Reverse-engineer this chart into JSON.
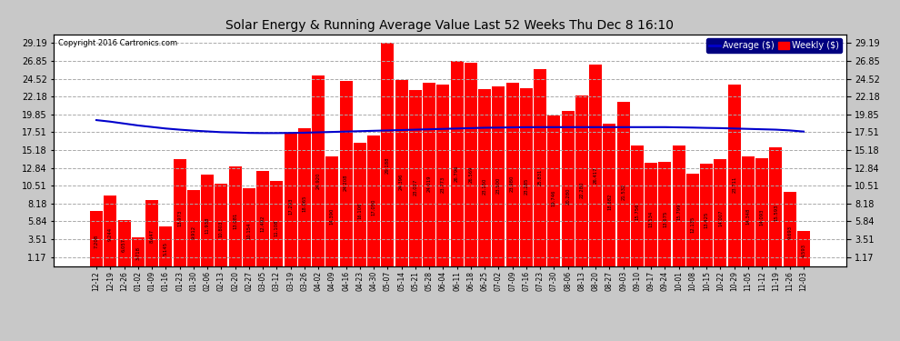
{
  "title": "Solar Energy & Running Average Value Last 52 Weeks Thu Dec 8 16:10",
  "copyright": "Copyright 2016 Cartronics.com",
  "bar_color": "#ff0000",
  "avg_line_color": "#0000cc",
  "background_color": "#c8c8c8",
  "plot_bg_color": "#ffffff",
  "grid_color": "#aaaaaa",
  "text_color": "#000000",
  "yticks": [
    1.17,
    3.51,
    5.84,
    8.18,
    10.51,
    12.84,
    15.18,
    17.51,
    19.85,
    22.18,
    24.52,
    26.85,
    29.19
  ],
  "categories": [
    "12-12",
    "12-19",
    "12-26",
    "01-02",
    "01-09",
    "01-16",
    "01-23",
    "01-30",
    "02-06",
    "02-13",
    "02-20",
    "02-27",
    "03-05",
    "03-12",
    "03-19",
    "03-26",
    "04-02",
    "04-09",
    "04-16",
    "04-23",
    "04-30",
    "05-07",
    "05-14",
    "05-21",
    "05-28",
    "06-04",
    "06-11",
    "06-18",
    "06-25",
    "07-02",
    "07-09",
    "07-16",
    "07-23",
    "07-30",
    "08-06",
    "08-13",
    "08-20",
    "08-27",
    "09-03",
    "09-10",
    "09-17",
    "09-24",
    "10-01",
    "10-08",
    "10-15",
    "10-22",
    "10-29",
    "11-05",
    "11-12",
    "11-19",
    "11-26",
    "12-03"
  ],
  "values": [
    7.208,
    9.244,
    6.057,
    3.718,
    8.647,
    5.145,
    13.973,
    9.912,
    11.938,
    10.803,
    13.081,
    10.154,
    12.492,
    11.108,
    17.293,
    18.065,
    24.92,
    14.39,
    24.208,
    16.106,
    17.05,
    29.188,
    24.396,
    23.027,
    24.019,
    23.773,
    26.796,
    26.569,
    23.15,
    23.5,
    23.98,
    23.285,
    25.831,
    19.746,
    20.28,
    22.28,
    26.417,
    18.682,
    21.532,
    15.756,
    13.534,
    13.675,
    15.799,
    12.135,
    13.425,
    14.007,
    23.711,
    14.348,
    14.093,
    15.593,
    9.693,
    4.593
  ],
  "avg_values": [
    19.1,
    18.9,
    18.65,
    18.4,
    18.2,
    18.0,
    17.85,
    17.72,
    17.62,
    17.52,
    17.48,
    17.42,
    17.4,
    17.4,
    17.42,
    17.45,
    17.5,
    17.55,
    17.6,
    17.65,
    17.7,
    17.75,
    17.8,
    17.85,
    17.9,
    17.95,
    18.0,
    18.05,
    18.1,
    18.12,
    18.15,
    18.17,
    18.18,
    18.18,
    18.18,
    18.18,
    18.18,
    18.18,
    18.18,
    18.18,
    18.18,
    18.18,
    18.15,
    18.12,
    18.08,
    18.05,
    18.0,
    17.95,
    17.9,
    17.85,
    17.75,
    17.6
  ],
  "legend_avg_label": "Average ($)",
  "legend_weekly_label": "Weekly ($)"
}
